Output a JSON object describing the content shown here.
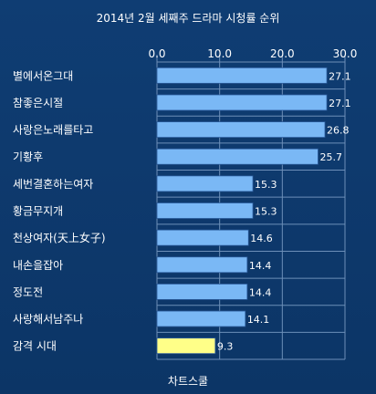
{
  "chart_data": {
    "type": "bar",
    "orientation": "horizontal",
    "title": "2014년 2월 세째주 드라마 시청률 순위",
    "categories": [
      "별에서온그대",
      "참좋은시절",
      "사랑은노래를타고",
      "기황후",
      "세번결혼하는여자",
      "황금무지개",
      "천상여자(天上女子)",
      "내손을잡아",
      "정도전",
      "사랑해서남주나",
      "감격 시대"
    ],
    "values": [
      27.1,
      27.1,
      26.8,
      25.7,
      15.3,
      15.3,
      14.6,
      14.4,
      14.4,
      14.1,
      9.3
    ],
    "value_labels": [
      "27.1",
      "27.1",
      "26.8",
      "25.7",
      "15.3",
      "15.3",
      "14.6",
      "14.4",
      "14.4",
      "14.1",
      "9.3"
    ],
    "highlight_index": 10,
    "xlim": [
      0,
      30
    ],
    "xticks": [
      "0.0",
      "10.0",
      "20.0",
      "30.0"
    ],
    "grid": true,
    "xlabel": "",
    "ylabel": ""
  },
  "footer": {
    "source": "차트스쿨"
  },
  "colors": {
    "background": "#0e3a6e",
    "bar": "#7ab8f5",
    "bar_highlight": "#ffff88",
    "bar_border": "#2a5a9a",
    "grid": "#6d8fb8",
    "text": "#ffffff"
  }
}
